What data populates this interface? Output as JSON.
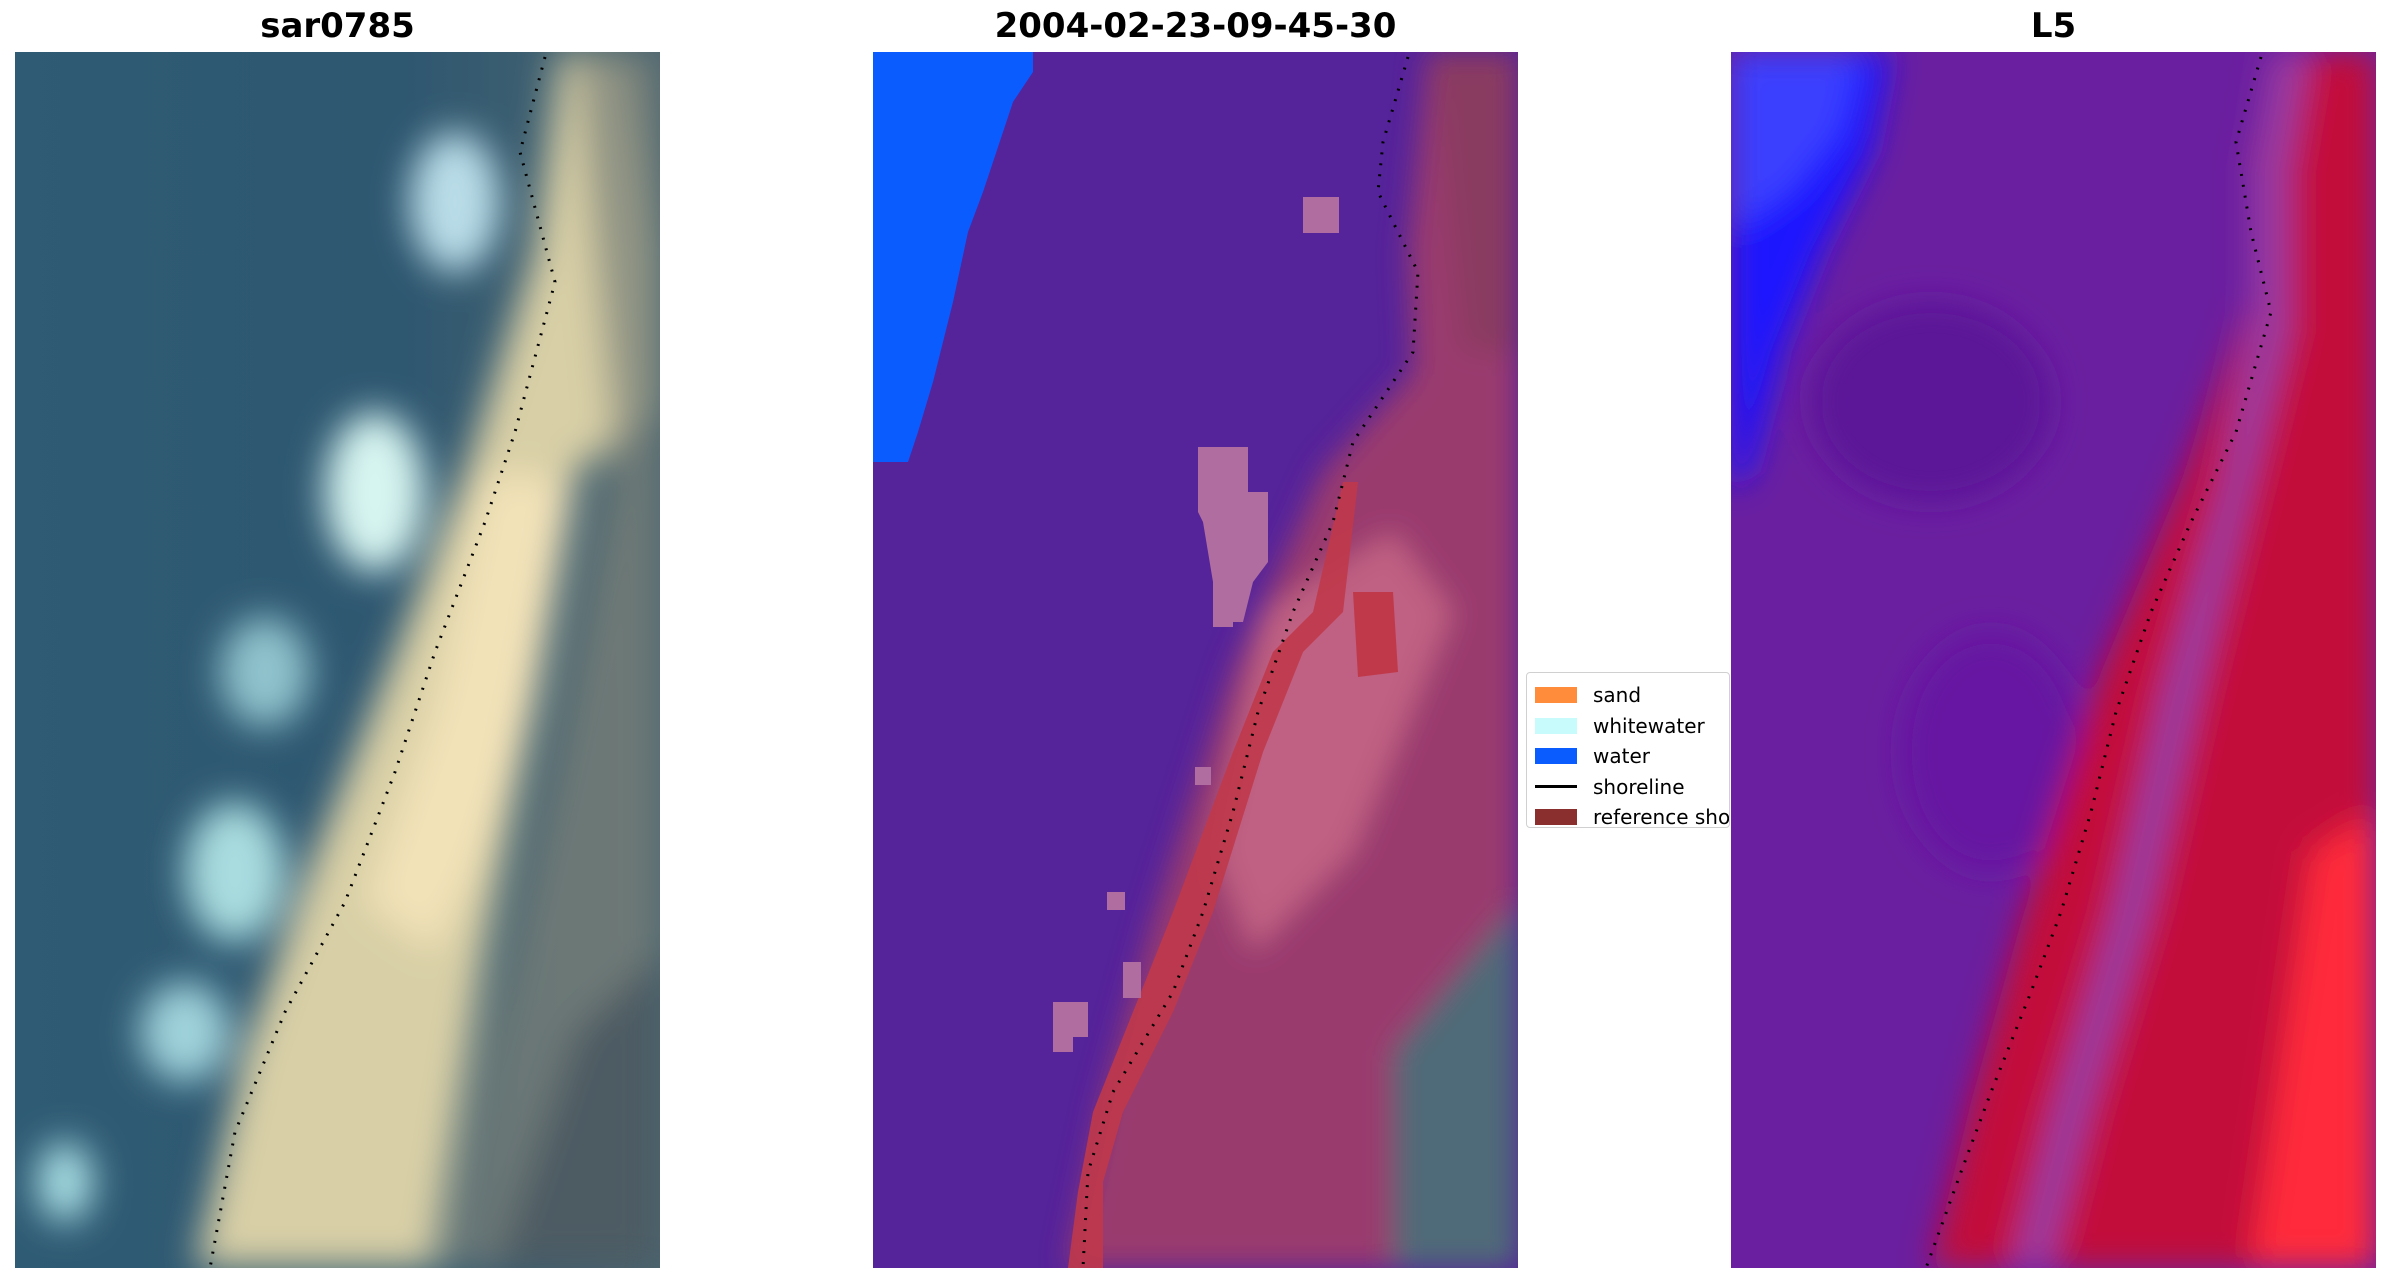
{
  "panels": [
    {
      "title": "sar0785"
    },
    {
      "title": "2004-02-23-09-45-30"
    },
    {
      "title": "L5"
    }
  ],
  "legend": [
    {
      "label": "sand",
      "color": "#ff8c3a"
    },
    {
      "label": "whitewater",
      "color": "#c8fcfc"
    },
    {
      "label": "water",
      "color": "#0a5cff"
    },
    {
      "label": "shoreline",
      "color": "#000000"
    },
    {
      "label": "reference shoreline",
      "color": "#8b2e2e"
    }
  ]
}
